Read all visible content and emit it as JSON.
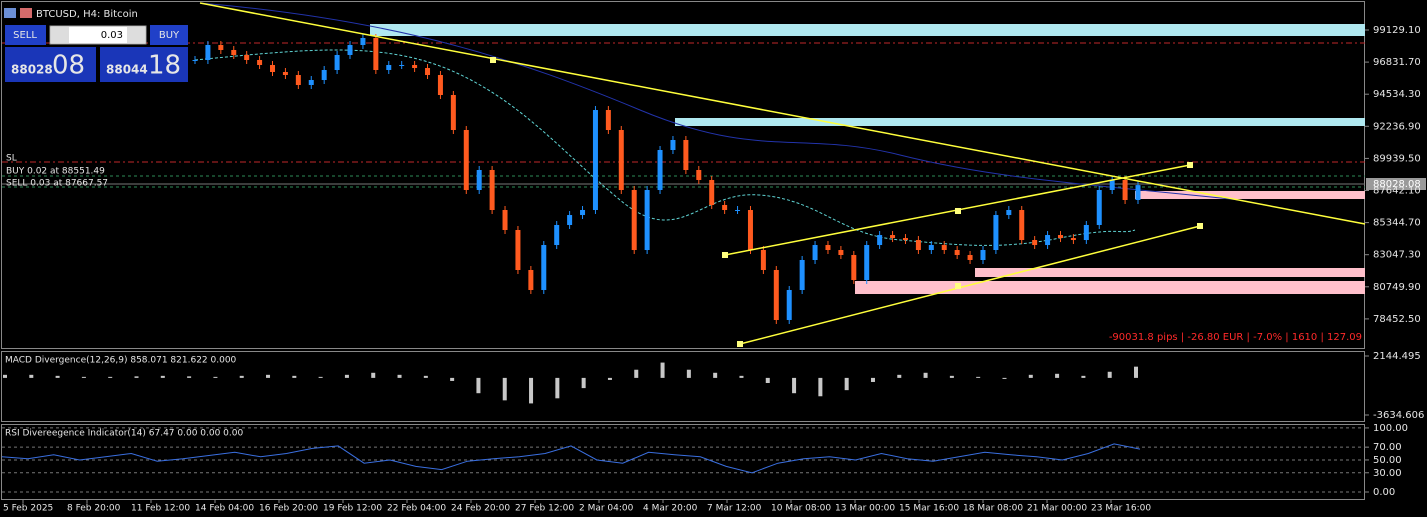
{
  "header": {
    "title": "BTCUSD, H4:  Bitcoin"
  },
  "trade_panel": {
    "sell": "SELL",
    "buy": "BUY",
    "volume": "0.03",
    "bid_big": "88028",
    "bid_small": "08",
    "ask_big": "88044",
    "ask_small": "18"
  },
  "orders": {
    "sl": "SL",
    "buy": "BUY 0.02 at 88551.49",
    "sell": "SELL 0.03 at 87667.57"
  },
  "current_price": "88028.08",
  "stats": "-90031.8 pips | -26.80 EUR | -7.0% | 1610 | 127.09",
  "chart_data": {
    "type": "candlestick",
    "up_color": "#1e90ff",
    "down_color": "#ff5a1f",
    "ylim": [
      76298,
      101276
    ],
    "yticks": [
      {
        "value": 99129.1,
        "label": "99129.10"
      },
      {
        "value": 96831.7,
        "label": "96831.70"
      },
      {
        "value": 94534.3,
        "label": "94534.30"
      },
      {
        "value": 92236.9,
        "label": "92236.90"
      },
      {
        "value": 89939.5,
        "label": "89939.50"
      },
      {
        "value": 87642.1,
        "label": "87642.10"
      },
      {
        "value": 85344.7,
        "label": "85344.70"
      },
      {
        "value": 83047.3,
        "label": "83047.30"
      },
      {
        "value": 80749.9,
        "label": "80749.90"
      },
      {
        "value": 78452.5,
        "label": "78452.50"
      }
    ],
    "close": [
      96982,
      98055,
      97698,
      97340,
      96982,
      96624,
      96123,
      95908,
      95193,
      95550,
      96266,
      97340,
      98055,
      98556,
      96266,
      96624,
      96624,
      96409,
      95908,
      94477,
      91972,
      87678,
      89109,
      86246,
      84815,
      81952,
      80521,
      83740,
      85173,
      85887,
      86246,
      93403,
      91972,
      87678,
      83383,
      87678,
      90541,
      91256,
      89109,
      88394,
      86604,
      86246,
      86246,
      83383,
      81952,
      78374,
      80521,
      82668,
      83740,
      83383,
      83025,
      81236,
      83740,
      84455,
      84240,
      84098,
      83383,
      83740,
      83383,
      83025,
      82668,
      83383,
      85887,
      86246,
      84098,
      83740,
      84455,
      84240,
      84098,
      85173,
      87678,
      88394,
      86962,
      88028.08
    ]
  },
  "macd": {
    "label": "MACD Divergence(12,26,9) 858.071 821.622 0.000",
    "color": "#c8c8c8",
    "ylim": [
      -4320,
      2536
    ],
    "yticks": [
      {
        "value": 2144.495,
        "label": "2144.495"
      },
      {
        "value": -3634.606,
        "label": "-3634.606"
      }
    ],
    "values": [
      300,
      300,
      200,
      100,
      100,
      150,
      200,
      150,
      100,
      200,
      300,
      200,
      100,
      300,
      500,
      300,
      200,
      -300,
      -1500,
      -2200,
      -2500,
      -2000,
      -1000,
      -200,
      800,
      1500,
      800,
      500,
      200,
      -500,
      -1500,
      -1800,
      -1200,
      -400,
      300,
      500,
      200,
      100,
      -100,
      300,
      400,
      200,
      600,
      1100
    ]
  },
  "rsi": {
    "label": "RSI Divereegence Indicator(14) 67.47 0.00 0.00 0.00",
    "color": "#3a6fe0",
    "ylim": [
      -12.5,
      103
    ],
    "yticks": [
      {
        "value": 100,
        "label": "100.00"
      },
      {
        "value": 70,
        "label": "70.00"
      },
      {
        "value": 50,
        "label": "50.00"
      },
      {
        "value": 30,
        "label": "30.00"
      },
      {
        "value": 0,
        "label": "0.00"
      }
    ],
    "values": [
      55,
      52,
      58,
      50,
      55,
      60,
      48,
      52,
      57,
      62,
      55,
      60,
      68,
      72,
      45,
      50,
      40,
      35,
      48,
      52,
      55,
      60,
      72,
      50,
      45,
      62,
      58,
      55,
      40,
      30,
      45,
      52,
      55,
      50,
      60,
      52,
      48,
      55,
      62,
      58,
      55,
      50,
      60,
      75,
      67
    ]
  },
  "time_axis": [
    "5 Feb 2025",
    "8 Feb 20:00",
    "11 Feb 12:00",
    "14 Feb 04:00",
    "16 Feb 20:00",
    "19 Feb 12:00",
    "22 Feb 04:00",
    "24 Feb 20:00",
    "27 Feb 12:00",
    "2 Mar 04:00",
    "4 Mar 20:00",
    "7 Mar 12:00",
    "10 Mar 08:00",
    "13 Mar 00:00",
    "15 Mar 16:00",
    "18 Mar 08:00",
    "21 Mar 00:00",
    "23 Mar 16:00"
  ]
}
